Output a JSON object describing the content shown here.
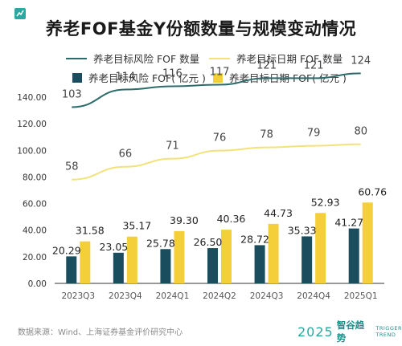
{
  "title": "养老FOF基金Y份额数量与规模变动情况",
  "legend": {
    "line1": "养老目标风险 FOF 数量",
    "line2": "养老目标日期 FOF 数量",
    "bar1": "养老目标风险 FOF( 亿元 )",
    "bar2": "养老目标日期 FOF( 亿元 )"
  },
  "source": "数据来源：Wind、上海证券基金评价研究中心",
  "brand": {
    "year": "2025",
    "name": "智谷趋势",
    "en1": "TRIGGER",
    "en2": "TREND"
  },
  "colors": {
    "risk": "#1a4d5e",
    "date": "#f5cf3a",
    "risk_line": "#2d6b6b",
    "date_line": "#f2e27a",
    "axis": "#333333"
  },
  "chart_data": {
    "type": "bar",
    "title": "养老FOF基金Y份额数量与规模变动情况",
    "categories": [
      "2023Q3",
      "2023Q4",
      "2024Q1",
      "2024Q2",
      "2024Q3",
      "2024Q4",
      "2025Q1"
    ],
    "ylim": [
      0,
      140
    ],
    "yticks": [
      "0.00",
      "20.00",
      "40.00",
      "60.00",
      "80.00",
      "100.00",
      "120.00",
      "140.00"
    ],
    "series": [
      {
        "name": "养老目标风险 FOF( 亿元 )",
        "type": "bar",
        "values": [
          20.29,
          23.05,
          25.78,
          26.5,
          28.72,
          35.33,
          41.27
        ],
        "labels": [
          "20.29",
          "23.05",
          "25.78",
          "26.50",
          "28.72",
          "35.33",
          "41.27"
        ]
      },
      {
        "name": "养老目标日期 FOF( 亿元 )",
        "type": "bar",
        "values": [
          31.58,
          35.17,
          39.3,
          40.36,
          44.73,
          52.93,
          60.76
        ],
        "labels": [
          "31.58",
          "35.17",
          "39.30",
          "40.36",
          "44.73",
          "52.93",
          "60.76"
        ]
      },
      {
        "name": "养老目标风险 FOF 数量",
        "type": "line",
        "values": [
          103,
          114,
          116,
          117,
          121,
          121,
          124
        ],
        "labels": [
          "103",
          "114",
          "116",
          "117",
          "121",
          "121",
          "124"
        ]
      },
      {
        "name": "养老目标日期 FOF 数量",
        "type": "line",
        "values": [
          58,
          66,
          71,
          76,
          78,
          79,
          80
        ],
        "labels": [
          "58",
          "66",
          "71",
          "76",
          "78",
          "79",
          "80"
        ]
      }
    ],
    "grid": false,
    "legend_position": "top"
  }
}
